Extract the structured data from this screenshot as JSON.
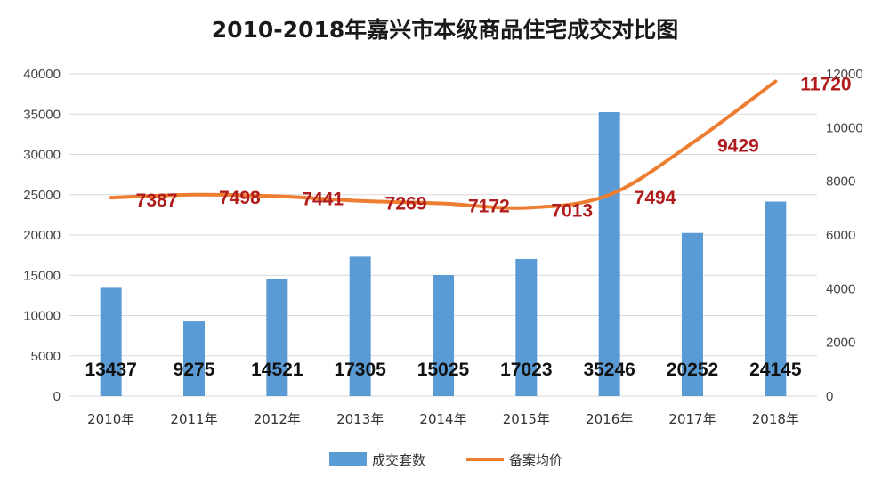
{
  "chart_data": {
    "type": "bar+line",
    "title": "2010-2018年嘉兴市本级商品住宅成交对比图",
    "categories": [
      "2010年",
      "2011年",
      "2012年",
      "2013年",
      "2014年",
      "2015年",
      "2016年",
      "2017年",
      "2018年"
    ],
    "series": [
      {
        "name": "成交套数",
        "type": "bar",
        "axis": "left",
        "color": "#5b9bd5",
        "values": [
          13437,
          9275,
          14521,
          17305,
          15025,
          17023,
          35246,
          20252,
          24145
        ]
      },
      {
        "name": "备案均价",
        "type": "line",
        "axis": "right",
        "color": "#ed7d31",
        "values": [
          7387,
          7498,
          7441,
          7269,
          7172,
          7013,
          7494,
          9429,
          11720
        ]
      }
    ],
    "y_left": {
      "min": 0,
      "max": 40000,
      "step": 5000,
      "ticks": [
        "0",
        "5000",
        "10000",
        "15000",
        "20000",
        "25000",
        "30000",
        "35000",
        "40000"
      ]
    },
    "y_right": {
      "min": 0,
      "max": 12000,
      "step": 2000,
      "ticks": [
        "0",
        "2000",
        "4000",
        "6000",
        "8000",
        "10000",
        "12000"
      ]
    },
    "bar_labels": [
      "13437",
      "9275",
      "14521",
      "17305",
      "15025",
      "17023",
      "35246",
      "20252",
      "24145"
    ],
    "line_labels": [
      "7387",
      "7498",
      "7441",
      "7269",
      "7172",
      "7013",
      "7494",
      "9429",
      "11720"
    ],
    "grid": true,
    "legend": {
      "position": "bottom",
      "items": [
        "成交套数",
        "备案均价"
      ]
    },
    "label_color": "#b01c1c"
  }
}
